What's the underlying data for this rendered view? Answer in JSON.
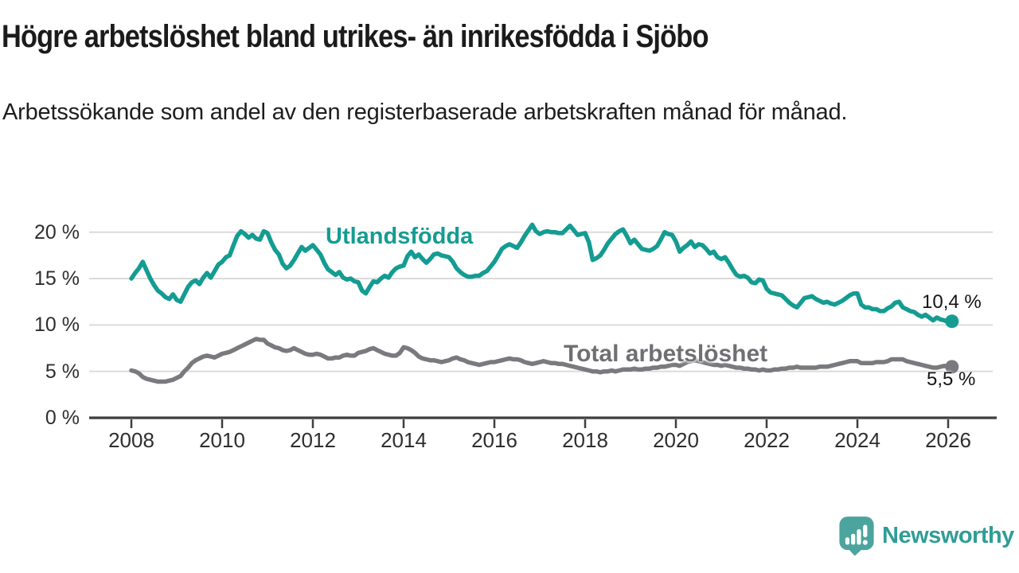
{
  "header": {
    "title": "Högre arbetslöshet bland utrikes- än inrikesfödda i Sjöbo",
    "subtitle": "Arbetssökande som andel av den registerbaserade arbetskraften månad för månad."
  },
  "chart_data": {
    "type": "line",
    "unit": "%",
    "x_start": "2008-01",
    "x_end": "2026-02",
    "x_ticks": [
      2008,
      2010,
      2012,
      2014,
      2016,
      2018,
      2020,
      2022,
      2024,
      2026
    ],
    "y_ticks": [
      {
        "value": 0,
        "label": "0 %"
      },
      {
        "value": 5,
        "label": "5 %"
      },
      {
        "value": 10,
        "label": "10 %"
      },
      {
        "value": 15,
        "label": "15 %"
      },
      {
        "value": 20,
        "label": "20 %"
      }
    ],
    "ylim": [
      0,
      21.5
    ],
    "grid": true,
    "legend_position": "inline-annotations",
    "colors": {
      "teal": "#149C92",
      "gray": "#7A7A7E",
      "gridline": "#DBDBDB",
      "axis": "#3E3E3E",
      "end_label_text": "#141414",
      "gray_label_text": "#6F6F74"
    },
    "series": [
      {
        "name": "Utlandsfödda",
        "color": "#149C92",
        "end_label": "10,4 %",
        "end_value": 10.4,
        "values": [
          15.0,
          15.6,
          16.1,
          16.8,
          15.9,
          15.0,
          14.3,
          13.7,
          13.4,
          13.0,
          12.8,
          13.3,
          12.7,
          12.5,
          13.3,
          14.1,
          14.6,
          14.8,
          14.4,
          15.1,
          15.6,
          15.1,
          15.8,
          16.5,
          16.8,
          17.3,
          17.5,
          18.6,
          19.6,
          20.1,
          19.8,
          19.4,
          19.7,
          19.3,
          19.2,
          20.1,
          19.9,
          18.9,
          18.1,
          17.6,
          16.6,
          16.1,
          16.4,
          17.0,
          17.7,
          18.4,
          18.0,
          18.3,
          18.6,
          18.1,
          17.6,
          16.7,
          16.0,
          15.7,
          15.4,
          15.7,
          15.1,
          14.9,
          15.0,
          14.7,
          14.6,
          13.7,
          13.4,
          14.1,
          14.7,
          14.6,
          15.0,
          15.3,
          15.1,
          15.7,
          16.1,
          16.3,
          16.4,
          17.4,
          17.9,
          17.3,
          17.6,
          17.1,
          16.7,
          17.1,
          17.6,
          17.7,
          17.5,
          17.4,
          17.3,
          16.8,
          16.1,
          15.7,
          15.4,
          15.2,
          15.2,
          15.3,
          15.3,
          15.6,
          15.8,
          16.3,
          16.8,
          17.5,
          18.2,
          18.5,
          18.7,
          18.5,
          18.3,
          18.9,
          19.6,
          20.2,
          20.8,
          20.1,
          19.8,
          20.0,
          20.1,
          20.0,
          20.0,
          19.9,
          19.9,
          20.3,
          20.7,
          20.2,
          19.7,
          19.8,
          19.9,
          18.9,
          17.0,
          17.2,
          17.5,
          18.1,
          18.8,
          19.3,
          19.8,
          20.1,
          20.3,
          19.6,
          18.8,
          19.2,
          18.7,
          18.2,
          18.1,
          18.0,
          18.2,
          18.5,
          19.2,
          20.0,
          19.8,
          19.7,
          19.0,
          17.9,
          18.3,
          18.6,
          19.0,
          18.4,
          18.7,
          18.6,
          18.2,
          17.7,
          17.9,
          17.3,
          17.1,
          17.3,
          16.7,
          16.0,
          15.4,
          15.2,
          15.3,
          15.1,
          14.6,
          14.5,
          14.9,
          14.8,
          13.9,
          13.5,
          13.4,
          13.3,
          13.2,
          12.8,
          12.4,
          12.1,
          11.9,
          12.4,
          12.9,
          13.0,
          13.1,
          12.8,
          12.6,
          12.4,
          12.5,
          12.3,
          12.2,
          12.4,
          12.6,
          12.9,
          13.2,
          13.4,
          13.4,
          12.2,
          11.9,
          11.9,
          11.7,
          11.7,
          11.5,
          11.5,
          11.8,
          12.0,
          12.4,
          12.5,
          11.9,
          11.7,
          11.5,
          11.4,
          11.1,
          10.9,
          11.1,
          10.8,
          10.5,
          10.8,
          10.6,
          10.5,
          10.3,
          10.4
        ]
      },
      {
        "name": "Total arbetslöshet",
        "color": "#7A7A7E",
        "end_label": "5,5 %",
        "end_value": 5.5,
        "values": [
          5.1,
          5.0,
          4.8,
          4.4,
          4.2,
          4.1,
          4.0,
          3.9,
          3.9,
          3.9,
          4.0,
          4.1,
          4.3,
          4.5,
          5.0,
          5.4,
          5.9,
          6.2,
          6.4,
          6.6,
          6.7,
          6.6,
          6.5,
          6.7,
          6.9,
          7.0,
          7.1,
          7.3,
          7.5,
          7.7,
          7.9,
          8.1,
          8.3,
          8.5,
          8.4,
          8.4,
          8.0,
          7.8,
          7.6,
          7.5,
          7.3,
          7.2,
          7.3,
          7.5,
          7.3,
          7.1,
          6.9,
          6.8,
          6.8,
          6.9,
          6.8,
          6.6,
          6.4,
          6.4,
          6.5,
          6.5,
          6.7,
          6.8,
          6.7,
          6.7,
          7.0,
          7.1,
          7.2,
          7.4,
          7.5,
          7.3,
          7.1,
          6.9,
          6.8,
          6.7,
          6.7,
          7.0,
          7.6,
          7.5,
          7.3,
          7.0,
          6.6,
          6.4,
          6.3,
          6.2,
          6.2,
          6.1,
          6.0,
          6.1,
          6.2,
          6.4,
          6.5,
          6.3,
          6.2,
          6.0,
          5.9,
          5.8,
          5.7,
          5.8,
          5.9,
          6.0,
          6.0,
          6.1,
          6.2,
          6.3,
          6.4,
          6.3,
          6.3,
          6.2,
          6.0,
          5.9,
          5.8,
          5.9,
          6.0,
          6.1,
          6.0,
          5.9,
          5.9,
          5.8,
          5.8,
          5.7,
          5.6,
          5.5,
          5.4,
          5.3,
          5.2,
          5.1,
          5.0,
          5.0,
          4.9,
          5.0,
          5.0,
          5.1,
          5.0,
          5.1,
          5.2,
          5.2,
          5.2,
          5.3,
          5.2,
          5.2,
          5.3,
          5.3,
          5.4,
          5.4,
          5.5,
          5.5,
          5.6,
          5.7,
          5.7,
          5.6,
          5.8,
          6.0,
          6.1,
          6.2,
          6.1,
          6.0,
          5.9,
          5.8,
          5.7,
          5.7,
          5.6,
          5.7,
          5.6,
          5.5,
          5.4,
          5.4,
          5.3,
          5.3,
          5.2,
          5.2,
          5.1,
          5.2,
          5.1,
          5.1,
          5.2,
          5.2,
          5.3,
          5.3,
          5.4,
          5.4,
          5.5,
          5.4,
          5.4,
          5.4,
          5.4,
          5.4,
          5.5,
          5.5,
          5.5,
          5.6,
          5.7,
          5.8,
          5.9,
          6.0,
          6.1,
          6.1,
          6.1,
          5.9,
          5.9,
          5.9,
          5.9,
          6.0,
          6.0,
          6.0,
          6.1,
          6.3,
          6.3,
          6.3,
          6.3,
          6.1,
          6.0,
          5.9,
          5.8,
          5.7,
          5.6,
          5.5,
          5.4,
          5.4,
          5.5,
          5.6,
          5.5,
          5.5
        ]
      }
    ]
  },
  "footer": {
    "brand": "Newsworthy",
    "brand_color": "#2F9D95",
    "logo_color": "#4CA49E"
  }
}
